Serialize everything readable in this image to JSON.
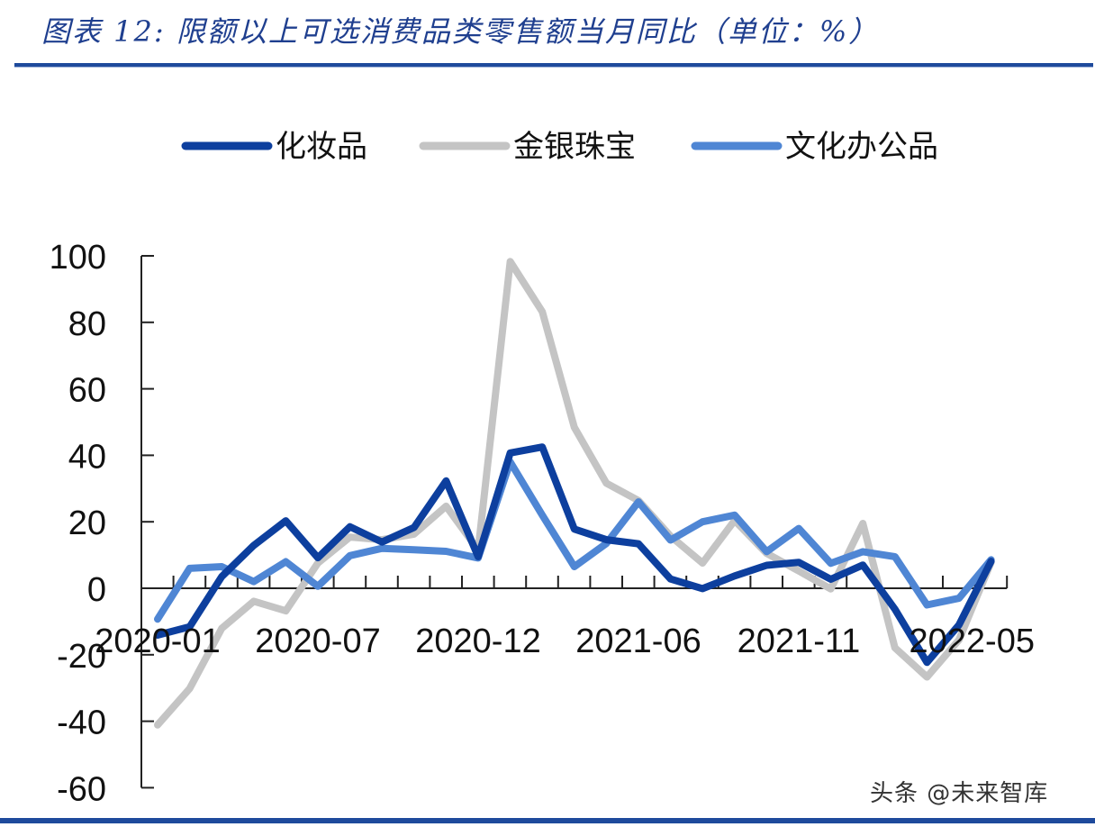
{
  "header": {
    "title": "图表 12:  限额以上可选消费品类零售额当月同比（单位：%）"
  },
  "watermark": "头条 @未来智库",
  "chart_data": {
    "type": "line",
    "title": "图表 12: 限额以上可选消费品类零售额当月同比（单位：%）",
    "xlabel": "",
    "ylabel": "%",
    "ylim": [
      -60,
      100
    ],
    "yticks": [
      100,
      80,
      60,
      40,
      20,
      0,
      -20,
      -40,
      -60
    ],
    "grid": false,
    "legend_position": "top",
    "x": [
      "2020-01",
      "2020-03",
      "2020-04",
      "2020-05",
      "2020-06",
      "2020-07",
      "2020-08",
      "2020-09",
      "2020-10",
      "2020-11",
      "2020-12",
      "2021-02",
      "2021-03",
      "2021-04",
      "2021-05",
      "2021-06",
      "2021-07",
      "2021-08",
      "2021-09",
      "2021-10",
      "2021-11",
      "2021-12",
      "2022-02",
      "2022-03",
      "2022-04",
      "2022-05",
      "2022-06"
    ],
    "x_tick_labels": [
      {
        "index": 0,
        "label": "2020-01"
      },
      {
        "index": 5,
        "label": "2020-07"
      },
      {
        "index": 10,
        "label": "2020-12"
      },
      {
        "index": 15,
        "label": "2021-06"
      },
      {
        "index": 20,
        "label": "2021-11"
      },
      {
        "index": 25.4,
        "label": "2022-05"
      }
    ],
    "series": [
      {
        "name": "化妆品",
        "color": "#0d3f9e",
        "values": [
          -14.1,
          -11.6,
          3.5,
          12.9,
          20.3,
          9.2,
          18.5,
          13.9,
          18.3,
          32.3,
          9.5,
          40.7,
          42.5,
          17.8,
          14.6,
          13.4,
          2.8,
          -0.1,
          3.7,
          6.9,
          7.8,
          2.7,
          7.0,
          -6.3,
          -22.3,
          -11.0,
          8.1
        ]
      },
      {
        "name": "金银珠宝",
        "color": "#c4c4c4",
        "values": [
          -41.1,
          -30.2,
          -12.1,
          -3.9,
          -6.8,
          7.6,
          15.4,
          14.6,
          16.3,
          24.7,
          11.5,
          98.3,
          83.2,
          48.4,
          31.6,
          26.4,
          15.7,
          7.6,
          20.4,
          10.5,
          5.2,
          -0.2,
          19.5,
          -17.9,
          -26.7,
          -15.5,
          7.8
        ]
      },
      {
        "name": "文化办公品",
        "color": "#4f86d4",
        "values": [
          -9.3,
          6.0,
          6.5,
          2.0,
          8.0,
          0.6,
          9.8,
          12.0,
          11.6,
          11.1,
          9.1,
          38.0,
          22.0,
          6.5,
          13.5,
          26.0,
          14.5,
          20.0,
          22.0,
          11.0,
          18.0,
          7.5,
          11.0,
          9.5,
          -5.0,
          -3.0,
          8.6
        ]
      }
    ]
  }
}
